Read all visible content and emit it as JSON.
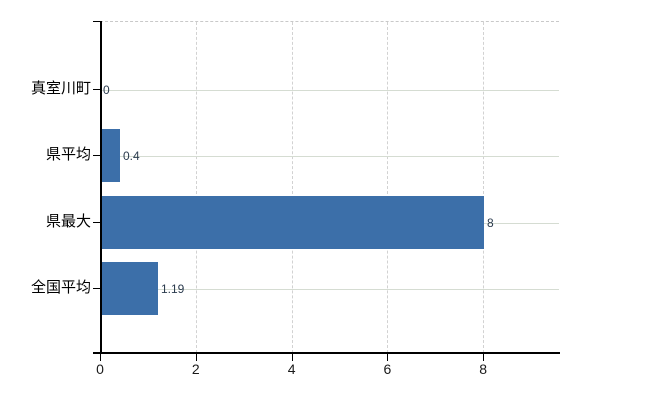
{
  "chart_data": {
    "type": "bar",
    "orientation": "horizontal",
    "title": "",
    "xlabel": "",
    "ylabel": "",
    "categories": [
      "真室川町",
      "県平均",
      "県最大",
      "全国平均"
    ],
    "values": [
      0,
      0.4,
      8,
      1.19
    ],
    "value_labels": [
      "0",
      "0.4",
      "8",
      "1.19"
    ],
    "x_ticks": [
      0,
      2,
      4,
      6,
      8
    ],
    "x_tick_labels": [
      "0",
      "2",
      "4",
      "6",
      "8"
    ],
    "xlim": [
      0,
      9.58
    ],
    "grid": true,
    "legend_position": "none",
    "colors": {
      "bar": "#3c6fa9",
      "axis": "#000000",
      "vertical_gridline": "#d2d2d2",
      "horizontal_gridline": "#d5dcd2",
      "value_label_text": "#2b3b4e",
      "tick_label_text": "#1a1a1a",
      "category_label_text": "#000000",
      "background": "#ffffff"
    }
  }
}
